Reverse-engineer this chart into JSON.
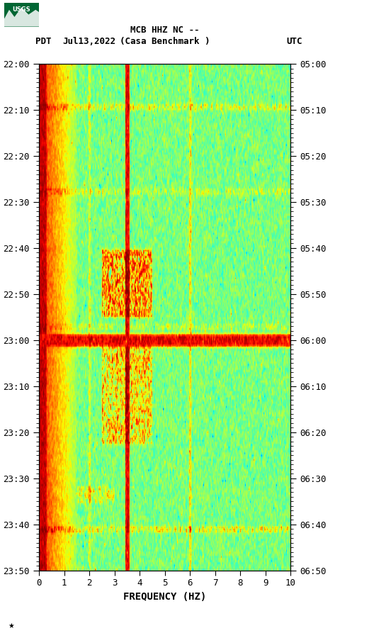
{
  "title_line1": "MCB HHZ NC --",
  "title_line2": "(Casa Benchmark )",
  "date_label": "Jul13,2022",
  "left_timezone": "PDT",
  "right_timezone": "UTC",
  "left_times": [
    "22:00",
    "22:10",
    "22:20",
    "22:30",
    "22:40",
    "22:50",
    "23:00",
    "23:10",
    "23:20",
    "23:30",
    "23:40",
    "23:50"
  ],
  "right_times": [
    "05:00",
    "05:10",
    "05:20",
    "05:30",
    "05:40",
    "05:50",
    "06:00",
    "06:10",
    "06:20",
    "06:30",
    "06:40",
    "06:50"
  ],
  "xlabel": "FREQUENCY (HZ)",
  "freq_min": 0,
  "freq_max": 10,
  "freq_ticks": [
    0,
    1,
    2,
    3,
    4,
    5,
    6,
    7,
    8,
    9,
    10
  ],
  "fig_width": 5.52,
  "fig_height": 8.93,
  "bg_color": "#ffffff",
  "black_bg": "#000000",
  "usgs_green": "#006633",
  "seed": 42
}
